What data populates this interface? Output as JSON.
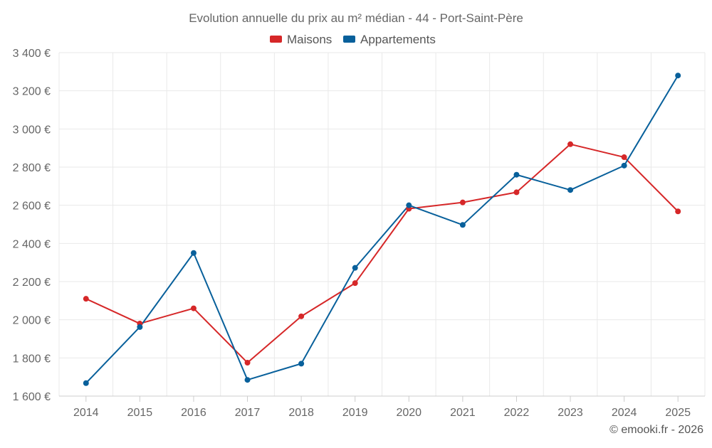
{
  "chart_data": {
    "type": "line",
    "title": "Evolution annuelle du prix au m² médian - 44 - Port-Saint-Père",
    "categories": [
      "2014",
      "2015",
      "2016",
      "2017",
      "2018",
      "2019",
      "2020",
      "2021",
      "2022",
      "2023",
      "2024",
      "2025"
    ],
    "series": [
      {
        "name": "Maisons",
        "color": "#d62728",
        "values": [
          2110,
          1980,
          2060,
          1775,
          2018,
          2192,
          2582,
          2615,
          2668,
          2920,
          2852,
          2568
        ]
      },
      {
        "name": "Appartements",
        "color": "#08609b",
        "values": [
          1668,
          1962,
          2350,
          1685,
          1770,
          2272,
          2600,
          2497,
          2760,
          2680,
          2808,
          3280
        ]
      }
    ],
    "ylim": [
      1600,
      3400
    ],
    "yticks": [
      1600,
      1800,
      2000,
      2200,
      2400,
      2600,
      2800,
      3000,
      3200,
      3400
    ],
    "ytick_labels": [
      "1 600 €",
      "1 800 €",
      "2 000 €",
      "2 200 €",
      "2 400 €",
      "2 600 €",
      "2 800 €",
      "3 000 €",
      "3 200 €",
      "3 400 €"
    ],
    "xlabel": "",
    "ylabel": "",
    "grid": true,
    "legend_position": "top-center"
  },
  "credit": "© emooki.fr - 2026"
}
